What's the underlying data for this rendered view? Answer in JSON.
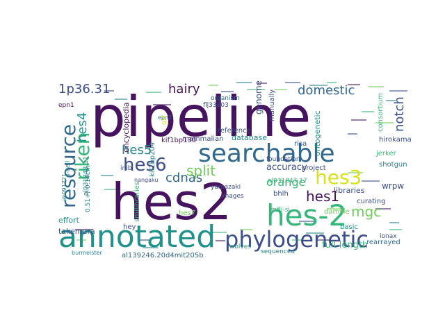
{
  "colors": {
    "background": "#ffffff",
    "dark_purple": "#46145f",
    "indigo": "#3b4e8b",
    "blue": "#31688e",
    "teal": "#26828e",
    "green_teal": "#21918c",
    "green": "#35b779",
    "light_green": "#6ece58",
    "yellow": "#d9e11c"
  },
  "words": [
    {
      "text": "pipeline",
      "color": "dark_purple"
    },
    {
      "text": "hes2",
      "color": "dark_purple"
    },
    {
      "text": "searchable",
      "color": "blue"
    },
    {
      "text": "annotated",
      "color": "green_teal"
    },
    {
      "text": "hes-2",
      "color": "green"
    },
    {
      "text": "phylogenetic",
      "color": "indigo"
    },
    {
      "text": "resource",
      "color": "blue"
    },
    {
      "text": "riken",
      "color": "green"
    },
    {
      "text": "hes6",
      "color": "indigo"
    },
    {
      "text": "hes3",
      "color": "yellow"
    },
    {
      "text": "hes4",
      "color": "green_teal"
    },
    {
      "text": "hes5",
      "color": "teal"
    },
    {
      "text": "hes1",
      "color": "dark_purple"
    },
    {
      "text": "mgc",
      "color": "light_green"
    },
    {
      "text": "hairy",
      "color": "dark_purple"
    },
    {
      "text": "domestic",
      "color": "blue"
    },
    {
      "text": "cdnas",
      "color": "blue"
    },
    {
      "text": "split",
      "color": "light_green"
    },
    {
      "text": "orange",
      "color": "green"
    },
    {
      "text": "1p36.31",
      "color": "indigo"
    },
    {
      "text": "notch",
      "color": "indigo"
    },
    {
      "text": "accuracy",
      "color": "indigo"
    },
    {
      "text": "encyclopedia",
      "color": "dark_purple"
    },
    {
      "text": "genome",
      "color": "indigo"
    },
    {
      "text": "manually",
      "color": "indigo"
    },
    {
      "text": "consortium",
      "color": "green"
    },
    {
      "text": "ontogenetic",
      "color": "green_teal"
    },
    {
      "text": "hirokama",
      "color": "indigo"
    },
    {
      "text": "database",
      "color": "teal"
    },
    {
      "text": "mammalian",
      "color": "indigo"
    },
    {
      "text": "reference",
      "color": "indigo"
    },
    {
      "text": "foundation",
      "color": "indigo"
    },
    {
      "text": "project",
      "color": "indigo"
    },
    {
      "text": "libraries",
      "color": "indigo"
    },
    {
      "text": "bhlh",
      "color": "indigo"
    },
    {
      "text": "full-length",
      "color": "green"
    },
    {
      "text": "rearrayed",
      "color": "blue"
    },
    {
      "text": "curating",
      "color": "indigo"
    },
    {
      "text": "basic",
      "color": "green_teal"
    },
    {
      "text": "shotgun",
      "color": "teal"
    },
    {
      "text": "wrpw",
      "color": "indigo"
    },
    {
      "text": "jerker",
      "color": "green"
    },
    {
      "text": "lonax",
      "color": "indigo"
    },
    {
      "text": "kif1bp130",
      "color": "dark_purple"
    },
    {
      "text": "kif1bp204",
      "color": "teal"
    },
    {
      "text": "effort",
      "color": "green_teal"
    },
    {
      "text": "takemura",
      "color": "indigo"
    },
    {
      "text": "burmeister",
      "color": "teal"
    },
    {
      "text": "ak091721",
      "color": "teal"
    },
    {
      "text": "al031847.17",
      "color": "green"
    },
    {
      "text": "al031848.11",
      "color": "teal"
    },
    {
      "text": "flj33803",
      "color": "indigo"
    },
    {
      "text": "organism",
      "color": "blue"
    },
    {
      "text": "epn1",
      "color": "dark_purple"
    },
    {
      "text": "epn2",
      "color": "blue"
    },
    {
      "text": "inib",
      "color": "indigo"
    },
    {
      "text": "hes7",
      "color": "light_green"
    },
    {
      "text": "images",
      "color": "indigo"
    },
    {
      "text": "yamazaki",
      "color": "indigo"
    },
    {
      "text": "infli-si",
      "color": "green"
    },
    {
      "text": "risa",
      "color": "indigo"
    },
    {
      "text": "sequenced",
      "color": "teal"
    },
    {
      "text": "wolves",
      "color": "green_teal"
    },
    {
      "text": "hey",
      "color": "indigo"
    },
    {
      "text": "al139246.20d4mit205b",
      "color": "blue"
    },
    {
      "text": "0.51+/-0.14cm",
      "color": "teal"
    },
    {
      "text": "s-cell",
      "color": "green_teal"
    },
    {
      "text": "nangaku",
      "color": "indigo"
    },
    {
      "text": "smilibraries",
      "color": "green"
    },
    {
      "text": "orf",
      "color": "yellow"
    },
    {
      "text": "damille",
      "color": "light_green"
    }
  ]
}
